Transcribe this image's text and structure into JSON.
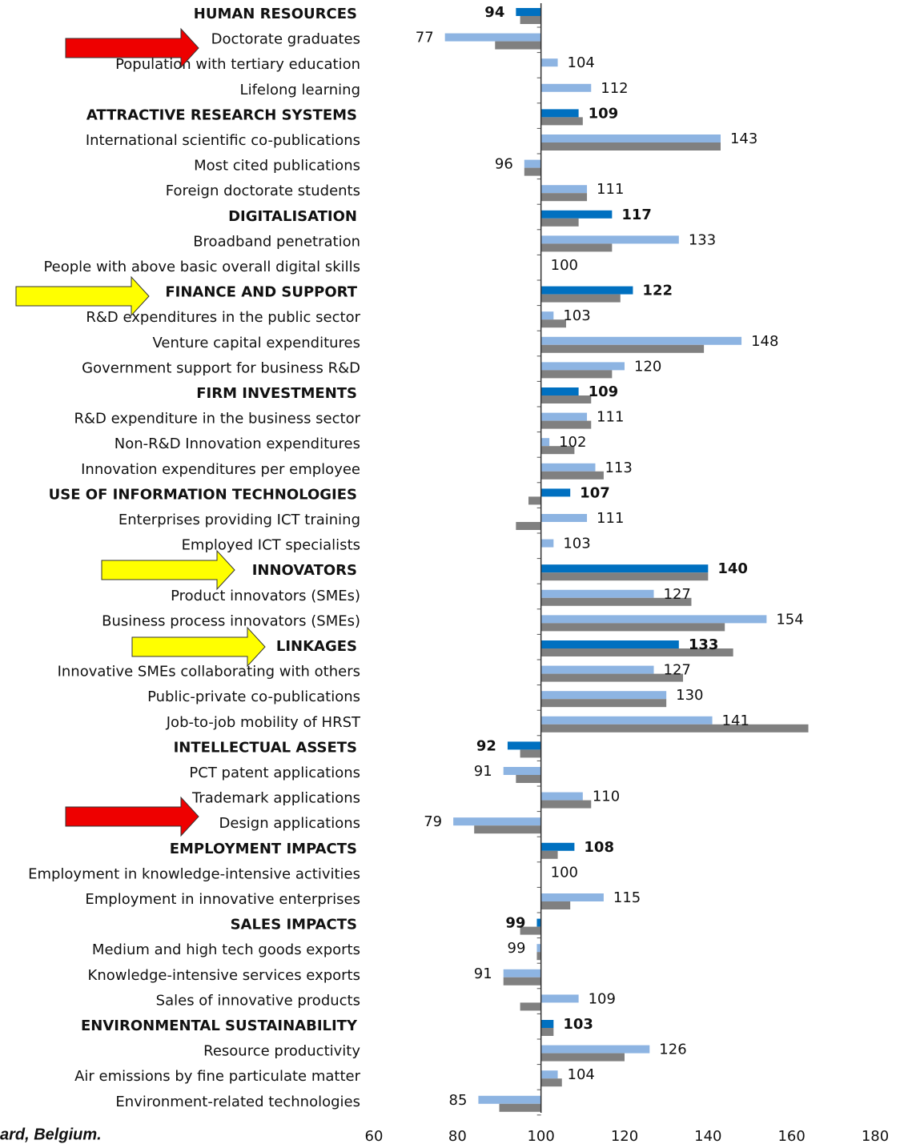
{
  "chart_data": {
    "type": "hbar",
    "categories": [
      "HUMAN RESOURCES",
      "Doctorate graduates",
      "Population with tertiary education",
      "Lifelong learning",
      "ATTRACTIVE RESEARCH SYSTEMS",
      "International scientific co-publications",
      "Most cited publications",
      "Foreign doctorate students",
      "DIGITALISATION",
      "Broadband penetration",
      "People with above basic overall digital skills",
      "FINANCE AND SUPPORT",
      "R&D expenditures in the public sector",
      "Venture capital expenditures",
      "Government support for business R&D",
      "FIRM INVESTMENTS",
      "R&D expenditure in the business sector",
      "Non-R&D Innovation expenditures",
      "Innovation expenditures per employee",
      "USE OF INFORMATION TECHNOLOGIES",
      "Enterprises providing ICT training",
      "Employed ICT specialists",
      "INNOVATORS",
      "Product innovators (SMEs)",
      "Business process innovators (SMEs)",
      "LINKAGES",
      "Innovative SMEs collaborating with others",
      "Public-private co-publications",
      "Job-to-job mobility of HRST",
      "INTELLECTUAL ASSETS",
      "PCT  patent applications",
      "Trademark applications",
      "Design applications",
      "EMPLOYMENT IMPACTS",
      "Employment in knowledge-intensive activities",
      "Employment in innovative enterprises",
      "SALES IMPACTS",
      "Medium and high tech goods exports",
      "Knowledge-intensive services exports",
      "Sales of innovative products",
      "ENVIRONMENTAL SUSTAINABILITY",
      "Resource productivity",
      "Air emissions by fine particulate matter",
      "Environment-related technologies"
    ],
    "series": [
      {
        "color": "#0070c0",
        "colors": [
          "#0070c0",
          "#8db4e2",
          "#8db4e2",
          "#8db4e2",
          "#0070c0",
          "#8db4e2",
          "#8db4e2",
          "#8db4e2",
          "#0070c0",
          "#8db4e2",
          "#8db4e2",
          "#0070c0",
          "#8db4e2",
          "#8db4e2",
          "#8db4e2",
          "#0070c0",
          "#8db4e2",
          "#8db4e2",
          "#8db4e2",
          "#0070c0",
          "#8db4e2",
          "#8db4e2",
          "#0070c0",
          "#8db4e2",
          "#8db4e2",
          "#0070c0",
          "#8db4e2",
          "#8db4e2",
          "#8db4e2",
          "#0070c0",
          "#8db4e2",
          "#8db4e2",
          "#8db4e2",
          "#0070c0",
          "#8db4e2",
          "#8db4e2",
          "#0070c0",
          "#8db4e2",
          "#8db4e2",
          "#8db4e2",
          "#0070c0",
          "#8db4e2",
          "#8db4e2",
          "#8db4e2"
        ],
        "values": [
          94,
          77,
          104,
          112,
          109,
          143,
          96,
          111,
          117,
          133,
          100,
          122,
          103,
          148,
          120,
          109,
          111,
          102,
          113,
          107,
          111,
          103,
          140,
          127,
          154,
          133,
          127,
          130,
          141,
          92,
          91,
          110,
          79,
          108,
          100,
          115,
          99,
          99,
          91,
          109,
          103,
          126,
          104,
          85
        ]
      },
      {
        "color": "#808080",
        "values": [
          95,
          89,
          100,
          100,
          110,
          143,
          96,
          111,
          109,
          117,
          100,
          119,
          106,
          139,
          117,
          112,
          112,
          108,
          115,
          97,
          94,
          100,
          140,
          136,
          144,
          146,
          134,
          130,
          164,
          95,
          94,
          112,
          84,
          104,
          100,
          107,
          95,
          99,
          91,
          95,
          103,
          120,
          105,
          90
        ]
      }
    ],
    "baseline": 100,
    "xlim": [
      60,
      180
    ],
    "xticks": [
      60,
      80,
      100,
      120,
      140,
      160,
      180
    ],
    "footnote": "ard, Belgium."
  }
}
